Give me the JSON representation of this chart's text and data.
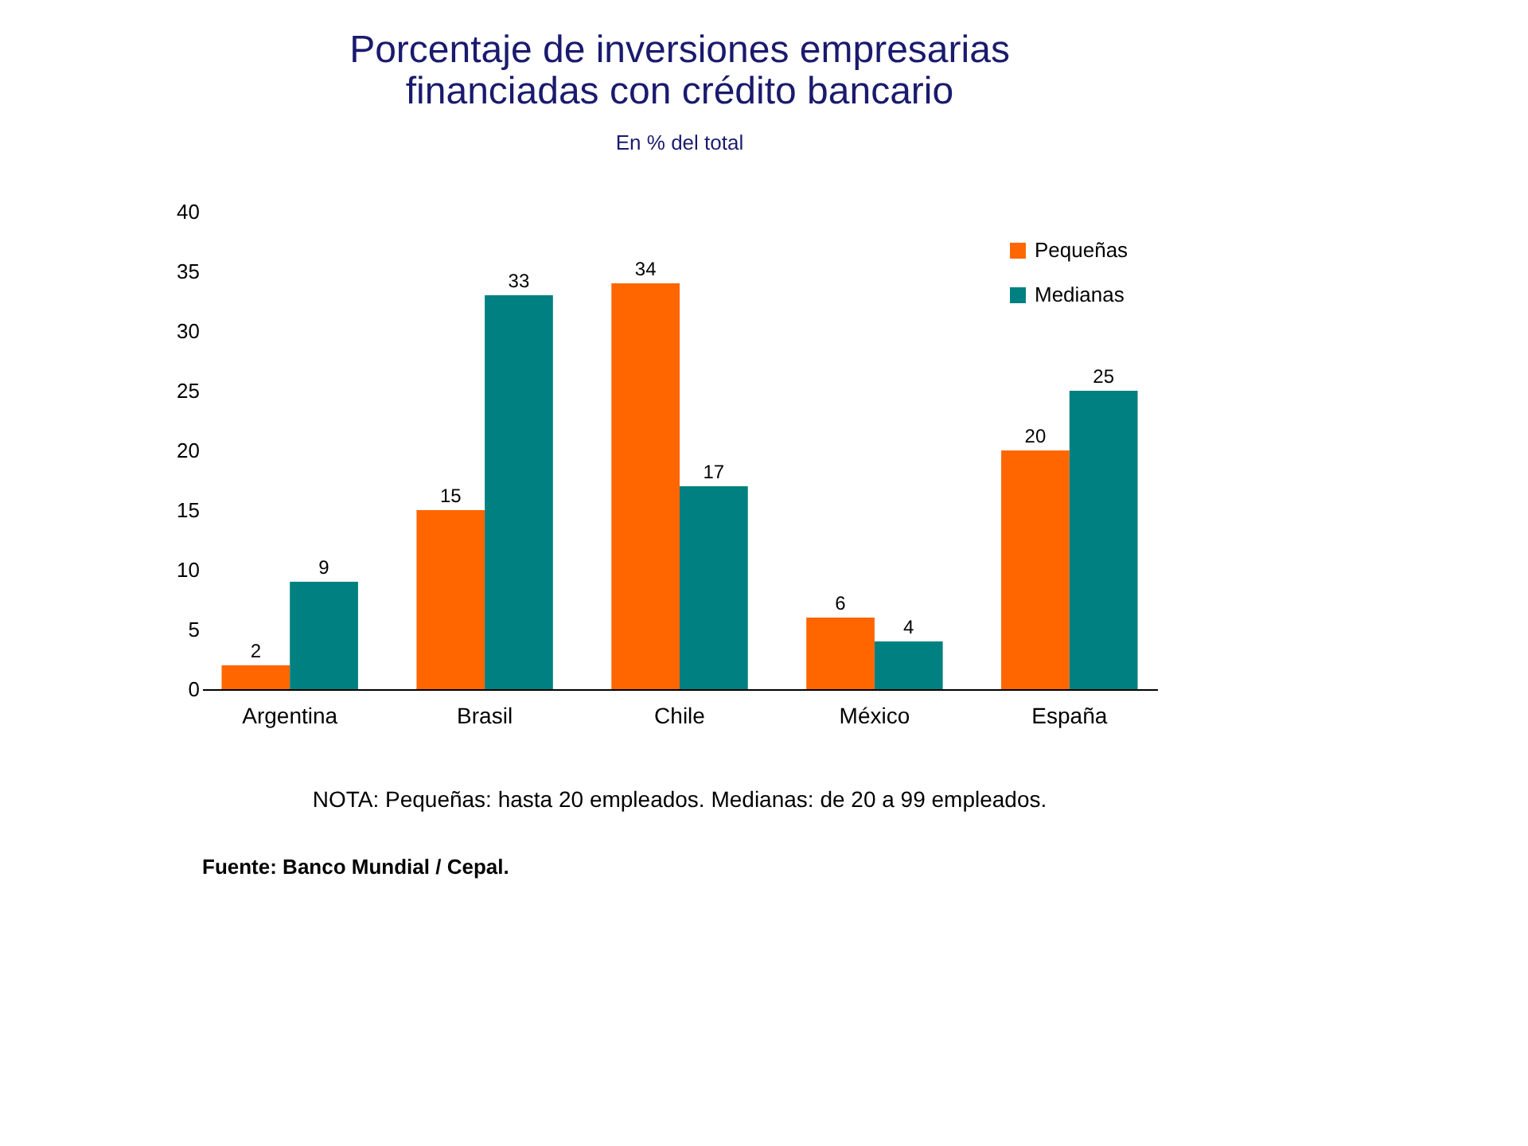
{
  "chart_data": {
    "type": "bar",
    "title": "Porcentaje de inversiones empresarias financiadas con crédito bancario",
    "subtitle": "En % del total",
    "categories": [
      "Argentina",
      "Brasil",
      "Chile",
      "México",
      "España"
    ],
    "series": [
      {
        "name": "Pequeñas",
        "color": "#ff6600",
        "values": [
          2,
          15,
          34,
          6,
          20
        ]
      },
      {
        "name": "Medianas",
        "color": "#008080",
        "values": [
          9,
          33,
          17,
          4,
          25
        ]
      }
    ],
    "ylim": [
      0,
      40
    ],
    "yticks": [
      0,
      5,
      10,
      15,
      20,
      25,
      30,
      35,
      40
    ],
    "grid": false,
    "legend": "top right",
    "data_labels": true,
    "annotations": [
      "NOTA: Pequeñas: hasta 20 empleados. Medianas: de 20 a 99 empleados.",
      "Fuente: Banco Mundial / Cepal."
    ]
  }
}
